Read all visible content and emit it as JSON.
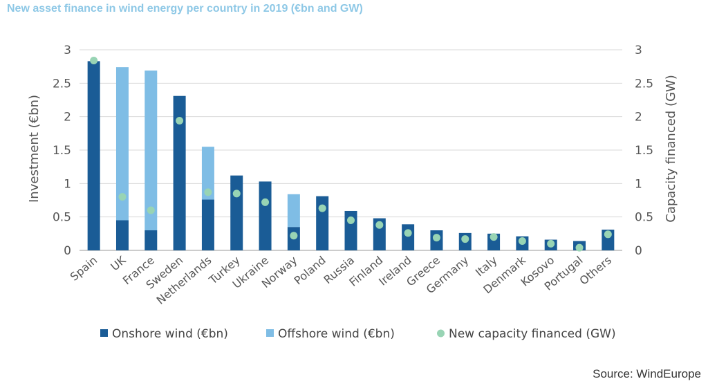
{
  "source": "Source: WindEurope",
  "chart_data": {
    "type": "bar",
    "title": "New asset finance in wind energy per country in 2019 (€bn and GW)",
    "ylabel": "Investment (€bn)",
    "y2label": "Capacity financed (GW)",
    "ylim": [
      0,
      3
    ],
    "y2lim": [
      0,
      3
    ],
    "yticks": [
      "0",
      "0.5",
      "1",
      "1.5",
      "2",
      "2.5",
      "3"
    ],
    "categories": [
      "Spain",
      "UK",
      "France",
      "Sweden",
      "Netherlands",
      "Turkey",
      "Ukraine",
      "Norway",
      "Poland",
      "Russia",
      "Finland",
      "Ireland",
      "Greece",
      "Germany",
      "Italy",
      "Denmark",
      "Kosovo",
      "Portugal",
      "Others"
    ],
    "stacked": true,
    "series": [
      {
        "name": "Onshore wind (€bn)",
        "kind": "bar",
        "axis": "left",
        "color": "#1a5c96",
        "values": [
          2.83,
          0.45,
          0.3,
          2.31,
          0.76,
          1.12,
          1.03,
          0.35,
          0.81,
          0.59,
          0.48,
          0.39,
          0.3,
          0.26,
          0.25,
          0.21,
          0.16,
          0.14,
          0.31
        ]
      },
      {
        "name": "Offshore wind (€bn)",
        "kind": "bar",
        "axis": "left",
        "color": "#7fbde5",
        "values": [
          0,
          2.29,
          2.39,
          0,
          0.79,
          0,
          0,
          0.49,
          0,
          0,
          0,
          0,
          0,
          0,
          0,
          0,
          0,
          0,
          0
        ]
      },
      {
        "name": "New capacity financed (GW)",
        "kind": "scatter",
        "axis": "right",
        "color": "#98d4b4",
        "values": [
          2.84,
          0.8,
          0.6,
          1.94,
          0.87,
          0.85,
          0.72,
          0.22,
          0.63,
          0.45,
          0.38,
          0.26,
          0.19,
          0.17,
          0.2,
          0.14,
          0.1,
          0.04,
          0.24
        ]
      }
    ],
    "legend": "bottom"
  }
}
